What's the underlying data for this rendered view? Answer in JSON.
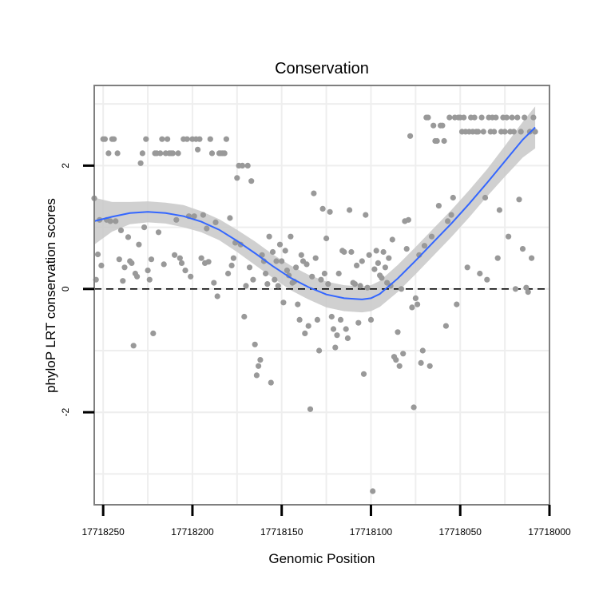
{
  "chart_data": {
    "type": "scatter",
    "title": "Conservation",
    "xlabel": "Genomic Position",
    "ylabel": "phyloP LRT conservation scores",
    "x_reversed": true,
    "xlim": [
      17718000,
      17718255
    ],
    "ylim": [
      -3.5,
      3.3
    ],
    "x_ticks": [
      17718250,
      17718200,
      17718150,
      17718100,
      17718050,
      17718000
    ],
    "x_tick_labels": [
      "17718250",
      "17718200",
      "17718150",
      "17718100",
      "17718050",
      "17718000"
    ],
    "y_ticks": [
      2,
      0,
      -2
    ],
    "y_tick_labels": [
      "2",
      "0",
      "-2"
    ],
    "grid": true,
    "reference_line": {
      "y": 0,
      "style": "dashed"
    },
    "colors": {
      "points": "#999999",
      "smooth_line": "#3366ff",
      "confidence_band": "#c8c8c8",
      "panel_border": "#7f7f7f",
      "grid": "#eeeeee"
    },
    "series": [
      {
        "name": "phyloP scores",
        "kind": "points",
        "points": [
          [
            17718255,
            1.47
          ],
          [
            17718254,
            0.15
          ],
          [
            17718253,
            0.56
          ],
          [
            17718252,
            1.12
          ],
          [
            17718251,
            0.38
          ],
          [
            17718250,
            2.43
          ],
          [
            17718249,
            2.43
          ],
          [
            17718248,
            1.12
          ],
          [
            17718247,
            2.2
          ],
          [
            17718246,
            1.1
          ],
          [
            17718245,
            2.43
          ],
          [
            17718244,
            2.43
          ],
          [
            17718243,
            1.1
          ],
          [
            17718242,
            2.2
          ],
          [
            17718241,
            0.48
          ],
          [
            17718240,
            0.95
          ],
          [
            17718239,
            0.13
          ],
          [
            17718238,
            0.35
          ],
          [
            17718236,
            0.84
          ],
          [
            17718235,
            0.45
          ],
          [
            17718234,
            0.42
          ],
          [
            17718233,
            -0.92
          ],
          [
            17718232,
            0.25
          ],
          [
            17718231,
            0.2
          ],
          [
            17718230,
            0.72
          ],
          [
            17718229,
            2.04
          ],
          [
            17718228,
            2.2
          ],
          [
            17718227,
            1.0
          ],
          [
            17718226,
            2.43
          ],
          [
            17718225,
            0.3
          ],
          [
            17718224,
            0.15
          ],
          [
            17718223,
            0.48
          ],
          [
            17718222,
            -0.72
          ],
          [
            17718221,
            2.2
          ],
          [
            17718220,
            2.2
          ],
          [
            17718219,
            0.92
          ],
          [
            17718218,
            2.2
          ],
          [
            17718217,
            2.43
          ],
          [
            17718216,
            0.4
          ],
          [
            17718215,
            2.2
          ],
          [
            17718214,
            2.43
          ],
          [
            17718213,
            2.2
          ],
          [
            17718212,
            2.2
          ],
          [
            17718211,
            2.2
          ],
          [
            17718210,
            0.55
          ],
          [
            17718209,
            1.12
          ],
          [
            17718208,
            2.2
          ],
          [
            17718207,
            0.5
          ],
          [
            17718206,
            0.42
          ],
          [
            17718205,
            2.43
          ],
          [
            17718204,
            0.3
          ],
          [
            17718203,
            2.43
          ],
          [
            17718202,
            1.18
          ],
          [
            17718201,
            0.2
          ],
          [
            17718200,
            2.43
          ],
          [
            17718199,
            1.18
          ],
          [
            17718198,
            2.43
          ],
          [
            17718197,
            2.26
          ],
          [
            17718196,
            2.43
          ],
          [
            17718195,
            0.5
          ],
          [
            17718194,
            1.2
          ],
          [
            17718193,
            0.42
          ],
          [
            17718192,
            0.98
          ],
          [
            17718191,
            0.44
          ],
          [
            17718190,
            2.43
          ],
          [
            17718189,
            2.2
          ],
          [
            17718188,
            0.1
          ],
          [
            17718187,
            1.08
          ],
          [
            17718186,
            -0.12
          ],
          [
            17718185,
            2.2
          ],
          [
            17718184,
            2.2
          ],
          [
            17718183,
            2.2
          ],
          [
            17718182,
            2.2
          ],
          [
            17718181,
            2.43
          ],
          [
            17718180,
            0.25
          ],
          [
            17718179,
            1.15
          ],
          [
            17718178,
            0.38
          ],
          [
            17718177,
            0.5
          ],
          [
            17718176,
            0.75
          ],
          [
            17718175,
            1.8
          ],
          [
            17718174,
            2.0
          ],
          [
            17718173,
            0.72
          ],
          [
            17718172,
            2.0
          ],
          [
            17718171,
            -0.45
          ],
          [
            17718170,
            0.05
          ],
          [
            17718169,
            2.0
          ],
          [
            17718168,
            0.35
          ],
          [
            17718167,
            1.75
          ],
          [
            17718166,
            0.15
          ],
          [
            17718165,
            -0.9
          ],
          [
            17718164,
            -1.4
          ],
          [
            17718163,
            -1.25
          ],
          [
            17718162,
            -1.15
          ],
          [
            17718161,
            0.55
          ],
          [
            17718160,
            0.45
          ],
          [
            17718159,
            0.25
          ],
          [
            17718158,
            0.08
          ],
          [
            17718157,
            0.85
          ],
          [
            17718156,
            -1.52
          ],
          [
            17718155,
            0.6
          ],
          [
            17718154,
            0.15
          ],
          [
            17718153,
            0.45
          ],
          [
            17718152,
            0.05
          ],
          [
            17718151,
            0.72
          ],
          [
            17718150,
            0.45
          ],
          [
            17718149,
            -0.22
          ],
          [
            17718148,
            0.62
          ],
          [
            17718147,
            0.3
          ],
          [
            17718146,
            0.22
          ],
          [
            17718145,
            0.85
          ],
          [
            17718144,
            0.1
          ],
          [
            17718143,
            0.12
          ],
          [
            17718142,
            0.35
          ],
          [
            17718141,
            -0.25
          ],
          [
            17718140,
            -0.5
          ],
          [
            17718139,
            0.55
          ],
          [
            17718138,
            0.45
          ],
          [
            17718137,
            -0.72
          ],
          [
            17718136,
            0.4
          ],
          [
            17718135,
            -0.6
          ],
          [
            17718134,
            -1.95
          ],
          [
            17718133,
            0.2
          ],
          [
            17718132,
            1.55
          ],
          [
            17718131,
            0.5
          ],
          [
            17718130,
            -0.5
          ],
          [
            17718129,
            -1.0
          ],
          [
            17718128,
            0.15
          ],
          [
            17718127,
            1.3
          ],
          [
            17718126,
            0.25
          ],
          [
            17718125,
            0.82
          ],
          [
            17718124,
            0.08
          ],
          [
            17718123,
            1.25
          ],
          [
            17718122,
            -0.45
          ],
          [
            17718121,
            -0.65
          ],
          [
            17718120,
            -0.95
          ],
          [
            17718119,
            -0.75
          ],
          [
            17718118,
            0.25
          ],
          [
            17718117,
            -0.5
          ],
          [
            17718116,
            0.62
          ],
          [
            17718115,
            0.6
          ],
          [
            17718114,
            -0.65
          ],
          [
            17718113,
            -0.8
          ],
          [
            17718112,
            1.28
          ],
          [
            17718111,
            0.6
          ],
          [
            17718110,
            0.1
          ],
          [
            17718109,
            0.08
          ],
          [
            17718108,
            0.38
          ],
          [
            17718107,
            -0.55
          ],
          [
            17718106,
            0.05
          ],
          [
            17718105,
            0.45
          ],
          [
            17718104,
            -1.38
          ],
          [
            17718103,
            1.2
          ],
          [
            17718102,
            0.02
          ],
          [
            17718101,
            0.55
          ],
          [
            17718100,
            -0.5
          ],
          [
            17718099,
            -3.28
          ],
          [
            17718098,
            0.32
          ],
          [
            17718097,
            0.62
          ],
          [
            17718096,
            0.42
          ],
          [
            17718095,
            0.22
          ],
          [
            17718094,
            0.18
          ],
          [
            17718093,
            0.6
          ],
          [
            17718092,
            0.35
          ],
          [
            17718091,
            0.1
          ],
          [
            17718090,
            0.5
          ],
          [
            17718089,
            0.05
          ],
          [
            17718088,
            0.8
          ],
          [
            17718087,
            -1.1
          ],
          [
            17718086,
            -1.15
          ],
          [
            17718085,
            -0.7
          ],
          [
            17718084,
            -1.25
          ],
          [
            17718083,
            0.0
          ],
          [
            17718082,
            -1.05
          ],
          [
            17718081,
            1.1
          ],
          [
            17718080,
            0.65
          ],
          [
            17718079,
            1.12
          ],
          [
            17718078,
            2.48
          ],
          [
            17718077,
            -0.3
          ],
          [
            17718076,
            -1.92
          ],
          [
            17718075,
            -0.15
          ],
          [
            17718074,
            -0.25
          ],
          [
            17718073,
            0.55
          ],
          [
            17718072,
            -1.2
          ],
          [
            17718071,
            -1.0
          ],
          [
            17718070,
            0.7
          ],
          [
            17718069,
            2.78
          ],
          [
            17718068,
            2.78
          ],
          [
            17718067,
            -1.25
          ],
          [
            17718066,
            0.85
          ],
          [
            17718065,
            2.65
          ],
          [
            17718064,
            2.4
          ],
          [
            17718063,
            2.4
          ],
          [
            17718062,
            1.35
          ],
          [
            17718061,
            2.65
          ],
          [
            17718060,
            2.65
          ],
          [
            17718059,
            2.4
          ],
          [
            17718058,
            -0.6
          ],
          [
            17718057,
            1.1
          ],
          [
            17718056,
            2.78
          ],
          [
            17718055,
            1.2
          ],
          [
            17718054,
            1.48
          ],
          [
            17718053,
            2.78
          ],
          [
            17718052,
            -0.25
          ],
          [
            17718051,
            2.78
          ],
          [
            17718050,
            2.78
          ],
          [
            17718049,
            2.55
          ],
          [
            17718048,
            2.78
          ],
          [
            17718047,
            2.55
          ],
          [
            17718046,
            0.35
          ],
          [
            17718045,
            2.55
          ],
          [
            17718044,
            2.78
          ],
          [
            17718043,
            2.55
          ],
          [
            17718042,
            2.78
          ],
          [
            17718041,
            2.55
          ],
          [
            17718040,
            2.55
          ],
          [
            17718039,
            0.25
          ],
          [
            17718038,
            2.78
          ],
          [
            17718037,
            2.55
          ],
          [
            17718036,
            1.48
          ],
          [
            17718035,
            0.15
          ],
          [
            17718034,
            2.78
          ],
          [
            17718033,
            2.55
          ],
          [
            17718032,
            2.78
          ],
          [
            17718031,
            2.55
          ],
          [
            17718030,
            2.78
          ],
          [
            17718029,
            0.5
          ],
          [
            17718028,
            1.28
          ],
          [
            17718027,
            2.55
          ],
          [
            17718026,
            2.78
          ],
          [
            17718025,
            2.55
          ],
          [
            17718024,
            2.78
          ],
          [
            17718023,
            0.85
          ],
          [
            17718022,
            2.55
          ],
          [
            17718021,
            2.78
          ],
          [
            17718020,
            2.55
          ],
          [
            17718019,
            0.0
          ],
          [
            17718018,
            2.78
          ],
          [
            17718017,
            1.45
          ],
          [
            17718016,
            2.55
          ],
          [
            17718015,
            0.65
          ],
          [
            17718014,
            2.78
          ],
          [
            17718013,
            0.02
          ],
          [
            17718012,
            -0.05
          ],
          [
            17718011,
            2.55
          ],
          [
            17718010,
            0.5
          ],
          [
            17718009,
            2.78
          ],
          [
            17718008,
            2.55
          ]
        ]
      },
      {
        "name": "loess smooth",
        "kind": "line",
        "points": [
          [
            17718255,
            1.1
          ],
          [
            17718245,
            1.17
          ],
          [
            17718235,
            1.23
          ],
          [
            17718225,
            1.25
          ],
          [
            17718215,
            1.23
          ],
          [
            17718205,
            1.18
          ],
          [
            17718195,
            1.09
          ],
          [
            17718185,
            0.96
          ],
          [
            17718175,
            0.78
          ],
          [
            17718165,
            0.58
          ],
          [
            17718155,
            0.37
          ],
          [
            17718145,
            0.18
          ],
          [
            17718135,
            0.03
          ],
          [
            17718125,
            -0.09
          ],
          [
            17718115,
            -0.15
          ],
          [
            17718105,
            -0.17
          ],
          [
            17718100,
            -0.15
          ],
          [
            17718095,
            -0.08
          ],
          [
            17718085,
            0.17
          ],
          [
            17718075,
            0.46
          ],
          [
            17718065,
            0.76
          ],
          [
            17718055,
            1.06
          ],
          [
            17718045,
            1.38
          ],
          [
            17718035,
            1.72
          ],
          [
            17718025,
            2.07
          ],
          [
            17718015,
            2.42
          ],
          [
            17718008,
            2.62
          ]
        ]
      }
    ],
    "confidence_band": {
      "x": [
        17718255,
        17718245,
        17718235,
        17718225,
        17718215,
        17718205,
        17718195,
        17718185,
        17718175,
        17718165,
        17718155,
        17718145,
        17718135,
        17718125,
        17718115,
        17718105,
        17718100,
        17718095,
        17718085,
        17718075,
        17718065,
        17718055,
        17718045,
        17718035,
        17718025,
        17718015,
        17718008
      ],
      "lower": [
        0.72,
        0.93,
        1.05,
        1.08,
        1.06,
        1.0,
        0.92,
        0.79,
        0.6,
        0.39,
        0.18,
        -0.02,
        -0.17,
        -0.3,
        -0.36,
        -0.38,
        -0.36,
        -0.29,
        -0.05,
        0.24,
        0.54,
        0.84,
        1.16,
        1.5,
        1.82,
        2.13,
        2.28
      ],
      "upper": [
        1.48,
        1.41,
        1.41,
        1.42,
        1.4,
        1.36,
        1.26,
        1.13,
        0.96,
        0.77,
        0.56,
        0.38,
        0.23,
        0.12,
        0.06,
        0.04,
        0.06,
        0.13,
        0.39,
        0.68,
        0.98,
        1.28,
        1.6,
        1.94,
        2.32,
        2.71,
        2.96
      ]
    }
  }
}
